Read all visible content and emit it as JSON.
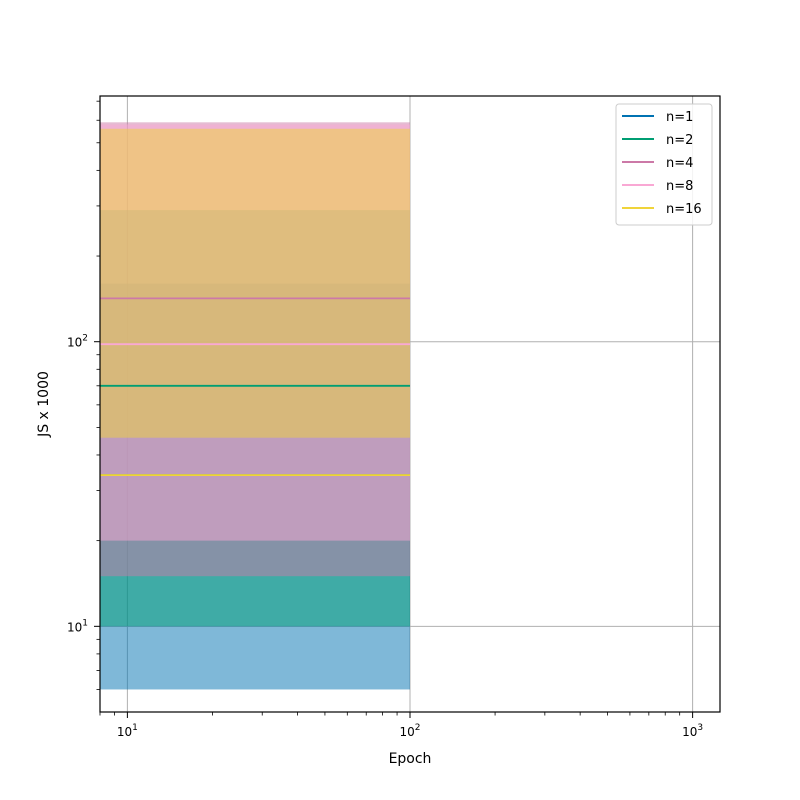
{
  "chart_data": {
    "type": "line",
    "xlabel": "Epoch",
    "ylabel": "JS x 1000",
    "xscale": "log",
    "yscale": "log",
    "xlim": [
      8,
      1250
    ],
    "ylim": [
      5,
      730
    ],
    "grid": true,
    "legend_position": "top-right",
    "x_major_ticks": [
      {
        "value": 10,
        "base": "10",
        "exp": "1"
      },
      {
        "value": 100,
        "base": "10",
        "exp": "2"
      },
      {
        "value": 1000,
        "base": "10",
        "exp": "3"
      }
    ],
    "y_major_ticks": [
      {
        "value": 10,
        "base": "10",
        "exp": "1"
      },
      {
        "value": 100,
        "base": "10",
        "exp": "2"
      }
    ],
    "x_minor_ticks": [
      8,
      9,
      20,
      30,
      40,
      50,
      60,
      70,
      80,
      90,
      200,
      300,
      400,
      500,
      600,
      700,
      800,
      900
    ],
    "y_minor_ticks": [
      6,
      7,
      8,
      9,
      20,
      30,
      40,
      50,
      60,
      70,
      80,
      90,
      200,
      300,
      400,
      500,
      600,
      700
    ],
    "series": [
      {
        "name": "n=1",
        "color": "#0072b2",
        "x": [
          8,
          100
        ],
        "mean": 34,
        "band": [
          6,
          160
        ]
      },
      {
        "name": "n=2",
        "color": "#009e73",
        "x": [
          8,
          100
        ],
        "mean": 70,
        "band": [
          10,
          290
        ]
      },
      {
        "name": "n=4",
        "color": "#cc79a7",
        "x": [
          8,
          100
        ],
        "mean": 142,
        "band": [
          15,
          590
        ]
      },
      {
        "name": "n=8",
        "color": "#f9a8d4",
        "x": [
          8,
          100
        ],
        "mean": 98,
        "band": [
          20,
          580
        ]
      },
      {
        "name": "n=16",
        "color": "#f0d43a",
        "x": [
          8,
          100
        ],
        "mean": 34,
        "band": [
          46,
          560
        ]
      }
    ]
  }
}
